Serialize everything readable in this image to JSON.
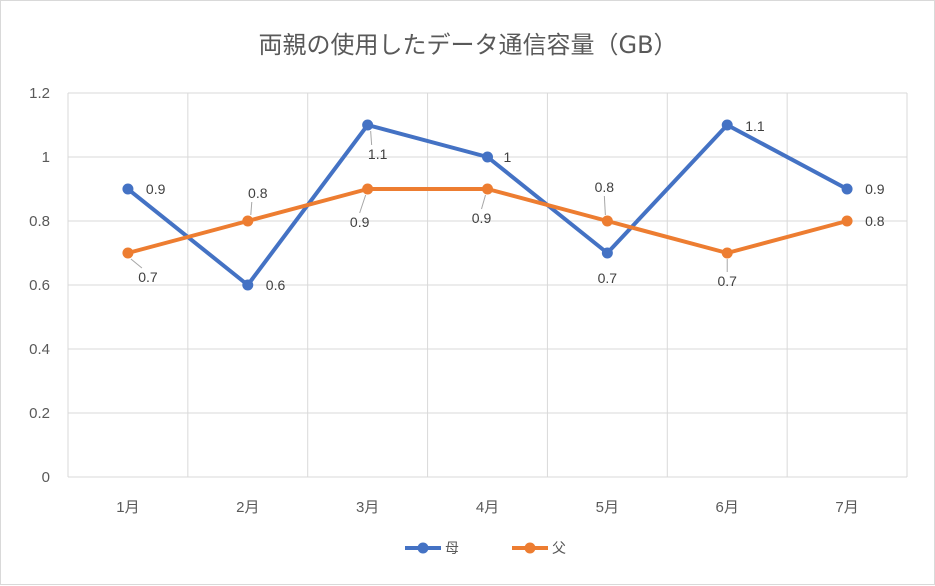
{
  "chart_data": {
    "type": "line",
    "title": "両親の使用したデータ通信容量（GB）",
    "categories": [
      "1月",
      "2月",
      "3月",
      "4月",
      "5月",
      "6月",
      "7月"
    ],
    "ylim": [
      0,
      1.2
    ],
    "yticks": [
      "0",
      "0.2",
      "0.4",
      "0.6",
      "0.8",
      "1",
      "1.2"
    ],
    "grid": true,
    "legend": "bottom",
    "series": [
      {
        "name": "母",
        "color": "#4472c4",
        "values": [
          0.9,
          0.6,
          1.1,
          1.0,
          0.7,
          1.1,
          0.9
        ],
        "labels": [
          "0.9",
          "0.6",
          "1.1",
          "1",
          "0.7",
          "1.1",
          "0.9"
        ]
      },
      {
        "name": "父",
        "color": "#ed7d31",
        "values": [
          0.7,
          0.8,
          0.9,
          0.9,
          0.8,
          0.7,
          0.8
        ],
        "labels": [
          "0.7",
          "0.8",
          "0.9",
          "0.9",
          "0.8",
          "0.7",
          "0.8"
        ]
      }
    ]
  }
}
